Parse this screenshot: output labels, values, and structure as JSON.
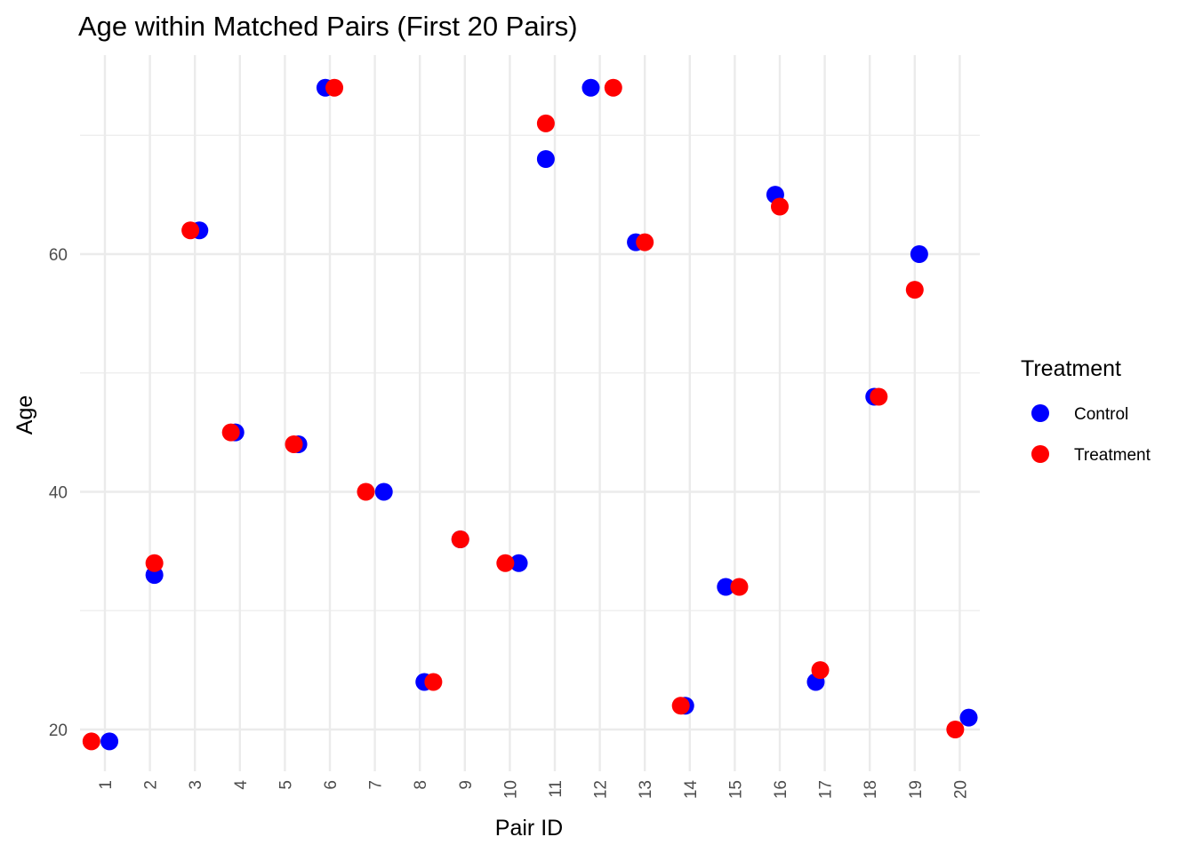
{
  "chart_data": {
    "type": "scatter",
    "title": "Age within Matched Pairs (First 20 Pairs)",
    "xlabel": "Pair ID",
    "ylabel": "Age",
    "categories": [
      "1",
      "2",
      "3",
      "4",
      "5",
      "6",
      "7",
      "8",
      "9",
      "10",
      "11",
      "12",
      "13",
      "14",
      "15",
      "16",
      "17",
      "18",
      "19",
      "20"
    ],
    "yticks": [
      "20",
      "40",
      "60"
    ],
    "ylim": [
      17,
      76
    ],
    "grid": true,
    "legend": {
      "title": "Treatment",
      "position": "right",
      "entries": [
        "Control",
        "Treatment"
      ]
    },
    "series": [
      {
        "name": "Control",
        "color": "#0000ff",
        "x": [
          1.1,
          2.1,
          3.1,
          3.9,
          5.3,
          5.9,
          7.2,
          8.1,
          8.9,
          10.2,
          10.8,
          11.8,
          12.8,
          13.9,
          14.8,
          15.9,
          16.8,
          18.1,
          19.1,
          20.2
        ],
        "values": [
          19,
          33,
          62,
          45,
          44,
          74,
          40,
          24,
          36,
          34,
          68,
          74,
          61,
          22,
          32,
          65,
          24,
          48,
          60,
          21
        ]
      },
      {
        "name": "Treatment",
        "color": "#ff0000",
        "x": [
          0.7,
          2.1,
          2.9,
          3.8,
          5.2,
          6.1,
          6.8,
          8.3,
          8.9,
          9.9,
          10.8,
          12.3,
          13.0,
          13.8,
          15.1,
          16.0,
          16.9,
          18.2,
          19.0,
          19.9
        ],
        "values": [
          19,
          34,
          62,
          45,
          44,
          74,
          40,
          24,
          36,
          34,
          71,
          74,
          61,
          22,
          32,
          64,
          25,
          48,
          57,
          20
        ]
      }
    ]
  }
}
